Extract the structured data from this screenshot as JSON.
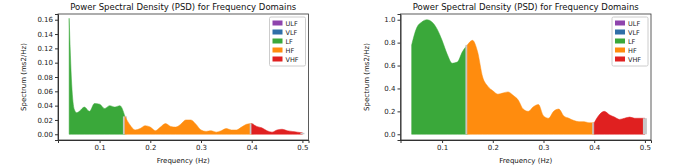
{
  "chart_data": [
    {
      "type": "area",
      "title": "Power Spectral Density (PSD) for Frequency Domains",
      "x_label": "Frequency (Hz)",
      "y_label": "Spectrum (ms2/Hz)",
      "xlim": [
        0.018,
        0.512
      ],
      "xticks": [
        0.1,
        0.2,
        0.3,
        0.4,
        0.5
      ],
      "ylim": [
        -0.008,
        0.168
      ],
      "yticks": [
        {
          "value": 0,
          "label": "0.00"
        },
        {
          "value": 0.02,
          "label": "0.02"
        },
        {
          "value": 0.04,
          "label": "0.04"
        },
        {
          "value": 0.06,
          "label": "0.06"
        },
        {
          "value": 0.08,
          "label": "0.08"
        },
        {
          "value": 0.1,
          "label": "0.10"
        },
        {
          "value": 0.12,
          "label": "0.12"
        },
        {
          "value": 0.14,
          "label": "0.14"
        },
        {
          "value": 0.16,
          "label": "0.16"
        }
      ],
      "legend": "upper right",
      "grid": false,
      "series": [
        {
          "name": "ULF",
          "color": "#8e44ad",
          "x": [],
          "values": []
        },
        {
          "name": "VLF",
          "color": "#2f6fa8",
          "x": [],
          "values": []
        },
        {
          "name": "LF",
          "color": "#3aa83a",
          "x": [
            0.04,
            0.045,
            0.05,
            0.055,
            0.06,
            0.07,
            0.08,
            0.09,
            0.1,
            0.11,
            0.12,
            0.13,
            0.14,
            0.15
          ],
          "values": [
            0.162,
            0.07,
            0.035,
            0.03,
            0.032,
            0.038,
            0.032,
            0.043,
            0.042,
            0.036,
            0.04,
            0.038,
            0.04,
            0.025
          ]
        },
        {
          "name": "HF",
          "color": "#ff8c0e",
          "x": [
            0.15,
            0.16,
            0.17,
            0.18,
            0.19,
            0.2,
            0.21,
            0.22,
            0.23,
            0.24,
            0.25,
            0.26,
            0.27,
            0.28,
            0.29,
            0.3,
            0.31,
            0.32,
            0.33,
            0.34,
            0.35,
            0.36,
            0.37,
            0.38,
            0.39,
            0.4
          ],
          "values": [
            0.025,
            0.013,
            0.006,
            0.008,
            0.012,
            0.01,
            0.005,
            0.01,
            0.015,
            0.011,
            0.01,
            0.014,
            0.02,
            0.02,
            0.014,
            0.006,
            0.004,
            0.005,
            0.003,
            0.005,
            0.008,
            0.006,
            0.006,
            0.01,
            0.014,
            0.015
          ]
        },
        {
          "name": "VHF",
          "color": "#e02020",
          "x": [
            0.4,
            0.41,
            0.42,
            0.43,
            0.44,
            0.45,
            0.46,
            0.47,
            0.48,
            0.49,
            0.5
          ],
          "values": [
            0.015,
            0.011,
            0.009,
            0.005,
            0.003,
            0.006,
            0.007,
            0.005,
            0.004,
            0.003,
            0.002
          ]
        }
      ]
    },
    {
      "type": "area",
      "title": "Power Spectral Density (PSD) for Frequency Domains",
      "x_label": "Frequency (Hz)",
      "y_label": "Spectrum (ms2/Hz)",
      "xlim": [
        0.018,
        0.512
      ],
      "xticks": [
        0.1,
        0.2,
        0.3,
        0.4,
        0.5
      ],
      "ylim": [
        -0.05,
        1.05
      ],
      "yticks": [
        {
          "value": 0,
          "label": "0.0"
        },
        0.2,
        0.4,
        0.6,
        0.8,
        {
          "value": 1,
          "label": "1.0"
        }
      ],
      "legend": "upper right",
      "grid": false,
      "series": [
        {
          "name": "ULF",
          "color": "#8e44ad",
          "x": [],
          "values": []
        },
        {
          "name": "VLF",
          "color": "#2f6fa8",
          "x": [],
          "values": []
        },
        {
          "name": "LF",
          "color": "#3aa83a",
          "x": [
            0.04,
            0.05,
            0.06,
            0.07,
            0.08,
            0.09,
            0.1,
            0.11,
            0.12,
            0.13,
            0.14,
            0.15
          ],
          "values": [
            0.78,
            0.93,
            0.98,
            1.0,
            0.98,
            0.92,
            0.82,
            0.7,
            0.62,
            0.63,
            0.72,
            0.78
          ]
        },
        {
          "name": "HF",
          "color": "#ff8c0e",
          "x": [
            0.15,
            0.16,
            0.17,
            0.18,
            0.19,
            0.2,
            0.21,
            0.22,
            0.23,
            0.24,
            0.25,
            0.26,
            0.27,
            0.28,
            0.29,
            0.3,
            0.31,
            0.32,
            0.33,
            0.34,
            0.35,
            0.36,
            0.37,
            0.38,
            0.39,
            0.4
          ],
          "values": [
            0.78,
            0.82,
            0.72,
            0.5,
            0.42,
            0.38,
            0.35,
            0.36,
            0.37,
            0.34,
            0.3,
            0.22,
            0.2,
            0.24,
            0.26,
            0.16,
            0.14,
            0.2,
            0.22,
            0.16,
            0.14,
            0.12,
            0.11,
            0.11,
            0.1,
            0.1
          ]
        },
        {
          "name": "VHF",
          "color": "#e02020",
          "x": [
            0.4,
            0.41,
            0.42,
            0.43,
            0.44,
            0.45,
            0.46,
            0.47,
            0.48,
            0.49,
            0.5
          ],
          "values": [
            0.1,
            0.17,
            0.2,
            0.17,
            0.15,
            0.13,
            0.14,
            0.15,
            0.14,
            0.14,
            0.14
          ]
        }
      ]
    }
  ]
}
